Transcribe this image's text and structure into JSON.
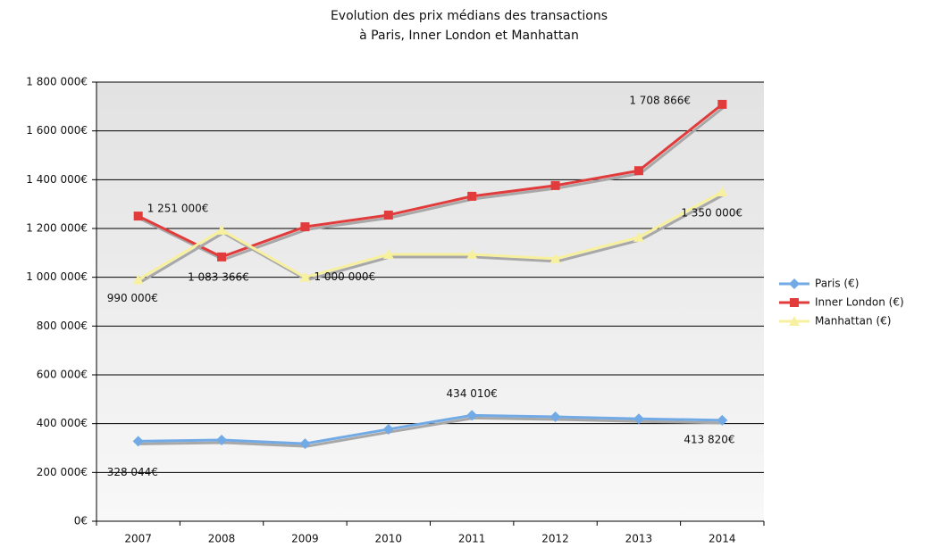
{
  "chart_data": {
    "type": "line",
    "title": [
      "Evolution des prix médians des transactions",
      "à Paris, Inner London et Manhattan"
    ],
    "categories": [
      "2007",
      "2008",
      "2009",
      "2010",
      "2011",
      "2012",
      "2013",
      "2014"
    ],
    "ylim": [
      0,
      1800000
    ],
    "yticks": [
      {
        "value": 0,
        "label": "0€"
      },
      {
        "value": 200000,
        "label": "200 000€"
      },
      {
        "value": 400000,
        "label": "400 000€"
      },
      {
        "value": 600000,
        "label": "600 000€"
      },
      {
        "value": 800000,
        "label": "800 000€"
      },
      {
        "value": 1000000,
        "label": "1 000 000€"
      },
      {
        "value": 1200000,
        "label": "1 200 000€"
      },
      {
        "value": 1400000,
        "label": "1 400 000€"
      },
      {
        "value": 1600000,
        "label": "1 600 000€"
      },
      {
        "value": 1800000,
        "label": "1 800 000€"
      }
    ],
    "grid": true,
    "legend": "right",
    "series": [
      {
        "name": "Paris (€)",
        "color": "#72aae6",
        "marker": "diamond",
        "values": [
          328044,
          333000,
          318000,
          377000,
          434010,
          428000,
          420000,
          413820
        ],
        "value_labels": [
          "328 044€",
          null,
          null,
          null,
          "434 010€",
          null,
          null,
          "413 820€"
        ]
      },
      {
        "name": "Inner London (€)",
        "color": "#e23b3b",
        "marker": "square",
        "values": [
          1251000,
          1083366,
          1207000,
          1255000,
          1332000,
          1376000,
          1437000,
          1708866
        ],
        "value_labels": [
          "1 251 000€",
          "1 083 366€",
          null,
          null,
          null,
          null,
          null,
          "1 708 866€"
        ]
      },
      {
        "name": "Manhattan (€)",
        "color": "#f7f09e",
        "marker": "triangle",
        "values": [
          990000,
          1193000,
          1000000,
          1094000,
          1094000,
          1076000,
          1164000,
          1350000
        ],
        "value_labels": [
          "990 000€",
          null,
          "1 000 000€",
          null,
          null,
          null,
          null,
          "1 350 000€"
        ]
      }
    ]
  }
}
